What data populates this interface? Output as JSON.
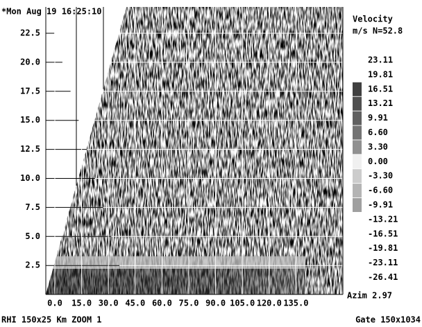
{
  "header": {
    "timestamp": "*Mon Aug 19 16:25:10"
  },
  "y_axis": {
    "ticks": [
      "22.5",
      "20.0",
      "17.5",
      "15.0",
      "12.5",
      "10.0",
      "7.5",
      "5.0",
      "2.5"
    ]
  },
  "x_axis": {
    "ticks": [
      "0.0",
      "15.0",
      "30.0",
      "45.0",
      "60.0",
      "75.0",
      "90.0",
      "105.0",
      "120.0",
      "135.0"
    ]
  },
  "legend": {
    "title": "Velocity",
    "subtitle": "m/s N=52.8",
    "entries": [
      "23.11",
      "19.81",
      "16.51",
      "13.21",
      "9.91",
      "6.60",
      "3.30",
      "0.00",
      "-3.30",
      "-6.60",
      "-9.91",
      "-13.21",
      "-16.51",
      "-19.81",
      "-23.11",
      "-26.41"
    ]
  },
  "azimuth": "Azim 2.97",
  "footer": {
    "mode": "RHI 150x25 Km ZOOM 1",
    "gate": "Gate 150x1034"
  }
}
